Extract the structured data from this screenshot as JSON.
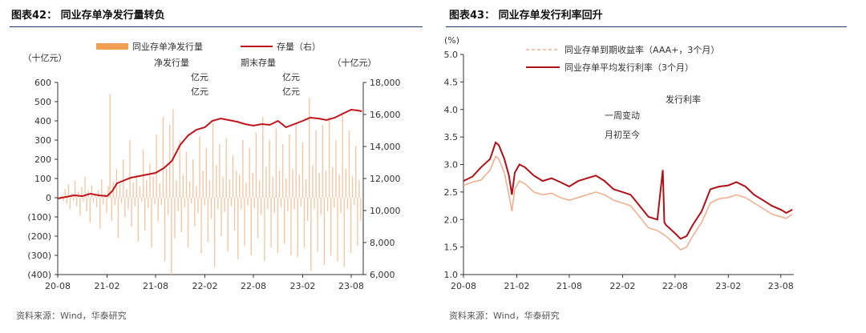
{
  "left_panel": {
    "title": "图表42： 同业存单净发行量转负",
    "source": "资料来源：Wind，华泰研究"
  },
  "right_panel": {
    "title": "图表43： 同业存单发行利率回升",
    "source": "资料来源：Wind，华泰研究"
  },
  "chart_data": [
    {
      "type": "bar",
      "title": "",
      "left_unit": "（十亿元）",
      "right_unit": "（十亿元）",
      "x_ticks": [
        "20-08",
        "21-02",
        "21-08",
        "22-02",
        "22-08",
        "23-02",
        "23-08"
      ],
      "x_range": [
        "2020-08-01",
        "2023-09-15"
      ],
      "y_left_ticks": [
        "600",
        "500",
        "400",
        "300",
        "200",
        "100",
        "0",
        "(100)",
        "(200)",
        "(300)",
        "(400)"
      ],
      "y_left_range": [
        -400,
        600
      ],
      "y_right_ticks": [
        "18,000",
        "16,000",
        "14,000",
        "12,000",
        "10,000",
        "8,000",
        "6,000"
      ],
      "y_right_range": [
        6000,
        18000
      ],
      "legend": [
        {
          "name": "同业存单净发行量",
          "color": "#f0a050",
          "kind": "bar"
        },
        {
          "name": "存量（右）",
          "color": "#c0141c",
          "kind": "line"
        }
      ],
      "stray_labels": [
        "净发行量",
        "期末存量",
        "亿元",
        "亿元",
        "亿元",
        "亿元"
      ],
      "bar_series": {
        "name": "同业存单净发行量",
        "color": "#f4c7a4",
        "values": [
          5,
          12,
          -18,
          45,
          -30,
          70,
          -60,
          22,
          -15,
          88,
          -45,
          30,
          -95,
          55,
          -20,
          110,
          -70,
          35,
          -130,
          65,
          -25,
          15,
          -50,
          40,
          -160,
          95,
          -35,
          20,
          -80,
          60,
          540,
          -120,
          85,
          -40,
          150,
          -210,
          70,
          -30,
          200,
          -100,
          45,
          -60,
          300,
          -150,
          80,
          -45,
          120,
          -230,
          60,
          -20,
          250,
          -170,
          90,
          -55,
          180,
          -260,
          110,
          -35,
          330,
          -120,
          75,
          -40,
          420,
          -330,
          150,
          -90,
          380,
          -400,
          460,
          -210,
          90,
          -70,
          300,
          -180,
          120,
          -50,
          240,
          -260,
          85,
          -30,
          200,
          -150,
          60,
          -80,
          320,
          -290,
          140,
          -40,
          260,
          -230,
          90,
          -110,
          390,
          -360,
          170,
          -60,
          280,
          -200,
          110,
          -75,
          310,
          -280,
          95,
          -45,
          220,
          -170,
          140,
          -320,
          120,
          -60,
          300,
          -250,
          80,
          -40,
          260,
          -300,
          130,
          -55,
          340,
          -210,
          90,
          -90,
          420,
          -330,
          160,
          -60,
          300,
          -260,
          110,
          -80,
          360,
          -290,
          140,
          -50,
          280,
          -240,
          100,
          -70,
          330,
          -300,
          150,
          -60,
          390,
          -310,
          120,
          -45,
          290,
          -260,
          95,
          -120,
          520,
          -380,
          170,
          -60,
          350,
          -280,
          130,
          -90,
          380,
          -350,
          140,
          -70,
          420,
          -300,
          160,
          -50,
          300,
          -330,
          120,
          -80,
          440,
          -360,
          150,
          -60,
          350,
          -290,
          110,
          -40,
          270,
          -250,
          90,
          -120
        ]
      },
      "line_series": {
        "name": "存量（右）",
        "color": "#c0141c",
        "points": [
          [
            "2020-08-01",
            10750
          ],
          [
            "2020-09-01",
            10850
          ],
          [
            "2020-10-01",
            10950
          ],
          [
            "2020-11-01",
            10900
          ],
          [
            "2020-12-01",
            11050
          ],
          [
            "2021-01-01",
            10950
          ],
          [
            "2021-02-01",
            10900
          ],
          [
            "2021-02-20",
            11200
          ],
          [
            "2021-03-10",
            11700
          ],
          [
            "2021-04-01",
            11850
          ],
          [
            "2021-05-01",
            12050
          ],
          [
            "2021-06-01",
            12150
          ],
          [
            "2021-07-01",
            12250
          ],
          [
            "2021-08-01",
            12350
          ],
          [
            "2021-09-01",
            12650
          ],
          [
            "2021-10-01",
            13100
          ],
          [
            "2021-11-01",
            14100
          ],
          [
            "2021-12-01",
            14700
          ],
          [
            "2022-01-01",
            15050
          ],
          [
            "2022-02-01",
            15200
          ],
          [
            "2022-03-01",
            15600
          ],
          [
            "2022-04-01",
            15750
          ],
          [
            "2022-05-01",
            15650
          ],
          [
            "2022-06-01",
            15550
          ],
          [
            "2022-07-01",
            15400
          ],
          [
            "2022-08-01",
            15300
          ],
          [
            "2022-09-01",
            15400
          ],
          [
            "2022-10-01",
            15350
          ],
          [
            "2022-11-01",
            15600
          ],
          [
            "2022-12-01",
            15200
          ],
          [
            "2023-01-01",
            15400
          ],
          [
            "2023-02-01",
            15600
          ],
          [
            "2023-03-01",
            15800
          ],
          [
            "2023-04-01",
            15750
          ],
          [
            "2023-05-01",
            15650
          ],
          [
            "2023-06-01",
            15800
          ],
          [
            "2023-07-01",
            16050
          ],
          [
            "2023-08-01",
            16300
          ],
          [
            "2023-08-25",
            16250
          ],
          [
            "2023-09-10",
            16200
          ]
        ]
      }
    },
    {
      "type": "line",
      "title": "",
      "y_unit": "(%)",
      "x_ticks": [
        "20-08",
        "21-02",
        "21-08",
        "22-02",
        "22-08",
        "23-02",
        "23-08"
      ],
      "x_range": [
        "2020-08-01",
        "2023-09-15"
      ],
      "y_ticks": [
        "5.0",
        "4.5",
        "4.0",
        "3.5",
        "3.0",
        "2.5",
        "2.0",
        "1.5",
        "1.0"
      ],
      "y_range": [
        1.0,
        5.0
      ],
      "stray_labels": [
        "发行利率",
        "一周变动",
        "月初至今"
      ],
      "series": [
        {
          "name": "同业存单到期收益率（AAA+，3个月）",
          "color": "#f0b090",
          "points": [
            [
              "2020-08-01",
              2.62
            ],
            [
              "2020-09-01",
              2.68
            ],
            [
              "2020-10-01",
              2.72
            ],
            [
              "2020-11-01",
              2.9
            ],
            [
              "2020-11-20",
              3.15
            ],
            [
              "2020-12-01",
              3.1
            ],
            [
              "2020-12-20",
              2.85
            ],
            [
              "2021-01-05",
              2.45
            ],
            [
              "2021-01-15",
              2.15
            ],
            [
              "2021-01-25",
              2.55
            ],
            [
              "2021-02-10",
              2.7
            ],
            [
              "2021-03-01",
              2.65
            ],
            [
              "2021-04-01",
              2.5
            ],
            [
              "2021-05-01",
              2.45
            ],
            [
              "2021-06-01",
              2.48
            ],
            [
              "2021-07-01",
              2.4
            ],
            [
              "2021-08-01",
              2.35
            ],
            [
              "2021-09-01",
              2.4
            ],
            [
              "2021-10-01",
              2.45
            ],
            [
              "2021-11-01",
              2.5
            ],
            [
              "2021-12-01",
              2.45
            ],
            [
              "2022-01-01",
              2.35
            ],
            [
              "2022-02-01",
              2.3
            ],
            [
              "2022-03-01",
              2.25
            ],
            [
              "2022-04-01",
              2.05
            ],
            [
              "2022-05-01",
              1.85
            ],
            [
              "2022-06-01",
              1.8
            ],
            [
              "2022-07-01",
              1.7
            ],
            [
              "2022-08-01",
              1.55
            ],
            [
              "2022-08-20",
              1.45
            ],
            [
              "2022-09-10",
              1.5
            ],
            [
              "2022-10-01",
              1.7
            ],
            [
              "2022-11-01",
              1.95
            ],
            [
              "2022-12-01",
              2.3
            ],
            [
              "2023-01-01",
              2.38
            ],
            [
              "2023-02-01",
              2.4
            ],
            [
              "2023-03-01",
              2.45
            ],
            [
              "2023-04-01",
              2.4
            ],
            [
              "2023-05-01",
              2.3
            ],
            [
              "2023-06-01",
              2.2
            ],
            [
              "2023-07-01",
              2.1
            ],
            [
              "2023-08-01",
              2.05
            ],
            [
              "2023-08-20",
              2.02
            ],
            [
              "2023-09-10",
              2.1
            ]
          ]
        },
        {
          "name": "同业存单平均发行利率（3个月）",
          "color": "#b01018",
          "points": [
            [
              "2020-08-01",
              2.7
            ],
            [
              "2020-09-01",
              2.78
            ],
            [
              "2020-10-01",
              2.95
            ],
            [
              "2020-11-01",
              3.1
            ],
            [
              "2020-11-20",
              3.4
            ],
            [
              "2020-12-01",
              3.35
            ],
            [
              "2020-12-20",
              3.1
            ],
            [
              "2021-01-05",
              2.8
            ],
            [
              "2021-01-15",
              2.45
            ],
            [
              "2021-01-25",
              2.85
            ],
            [
              "2021-02-10",
              3.0
            ],
            [
              "2021-03-01",
              2.95
            ],
            [
              "2021-04-01",
              2.8
            ],
            [
              "2021-05-01",
              2.7
            ],
            [
              "2021-06-01",
              2.75
            ],
            [
              "2021-07-01",
              2.68
            ],
            [
              "2021-08-01",
              2.6
            ],
            [
              "2021-09-01",
              2.7
            ],
            [
              "2021-10-01",
              2.75
            ],
            [
              "2021-11-01",
              2.8
            ],
            [
              "2021-12-01",
              2.7
            ],
            [
              "2022-01-01",
              2.55
            ],
            [
              "2022-02-01",
              2.5
            ],
            [
              "2022-03-01",
              2.45
            ],
            [
              "2022-04-01",
              2.25
            ],
            [
              "2022-05-01",
              2.05
            ],
            [
              "2022-06-01",
              2.0
            ],
            [
              "2022-06-20",
              2.9
            ],
            [
              "2022-06-25",
              1.95
            ],
            [
              "2022-07-01",
              1.9
            ],
            [
              "2022-08-01",
              1.75
            ],
            [
              "2022-08-20",
              1.65
            ],
            [
              "2022-09-10",
              1.7
            ],
            [
              "2022-10-01",
              1.9
            ],
            [
              "2022-11-01",
              2.15
            ],
            [
              "2022-12-01",
              2.55
            ],
            [
              "2023-01-01",
              2.6
            ],
            [
              "2023-02-01",
              2.62
            ],
            [
              "2023-03-01",
              2.68
            ],
            [
              "2023-04-01",
              2.6
            ],
            [
              "2023-05-01",
              2.45
            ],
            [
              "2023-06-01",
              2.35
            ],
            [
              "2023-07-01",
              2.25
            ],
            [
              "2023-08-01",
              2.18
            ],
            [
              "2023-08-20",
              2.12
            ],
            [
              "2023-09-10",
              2.18
            ]
          ]
        }
      ]
    }
  ]
}
